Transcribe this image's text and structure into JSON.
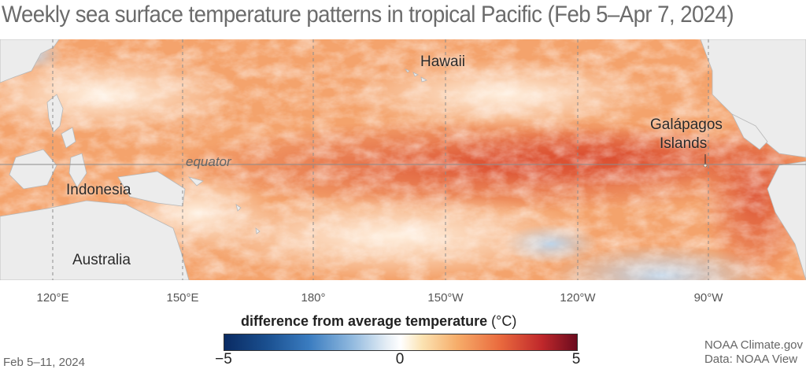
{
  "title": "Weekly sea surface temperature patterns in tropical Pacific (Feb 5–Apr 7, 2024)",
  "labels": {
    "hawaii": "Hawaii",
    "galapagos_line1": "Galápagos",
    "galapagos_line2": "Islands",
    "indonesia": "Indonesia",
    "australia": "Australia",
    "equator": "equator"
  },
  "longitude_ticks": [
    "120°E",
    "150°E",
    "180°",
    "150°W",
    "120°W",
    "90°W"
  ],
  "legend": {
    "title": "difference from average temperature",
    "unit": "(°C)",
    "min_label": "−5",
    "mid_label": "0",
    "max_label": "5",
    "range": [
      -5,
      5
    ],
    "colors": [
      "#0a2b63",
      "#3a7cc0",
      "#ffffff",
      "#f6ad6a",
      "#c0282b",
      "#6b0b1e"
    ]
  },
  "date_label": "Feb 5–11, 2024",
  "credits": {
    "line1": "NOAA Climate.gov",
    "line2": "Data: NOAA View"
  }
}
